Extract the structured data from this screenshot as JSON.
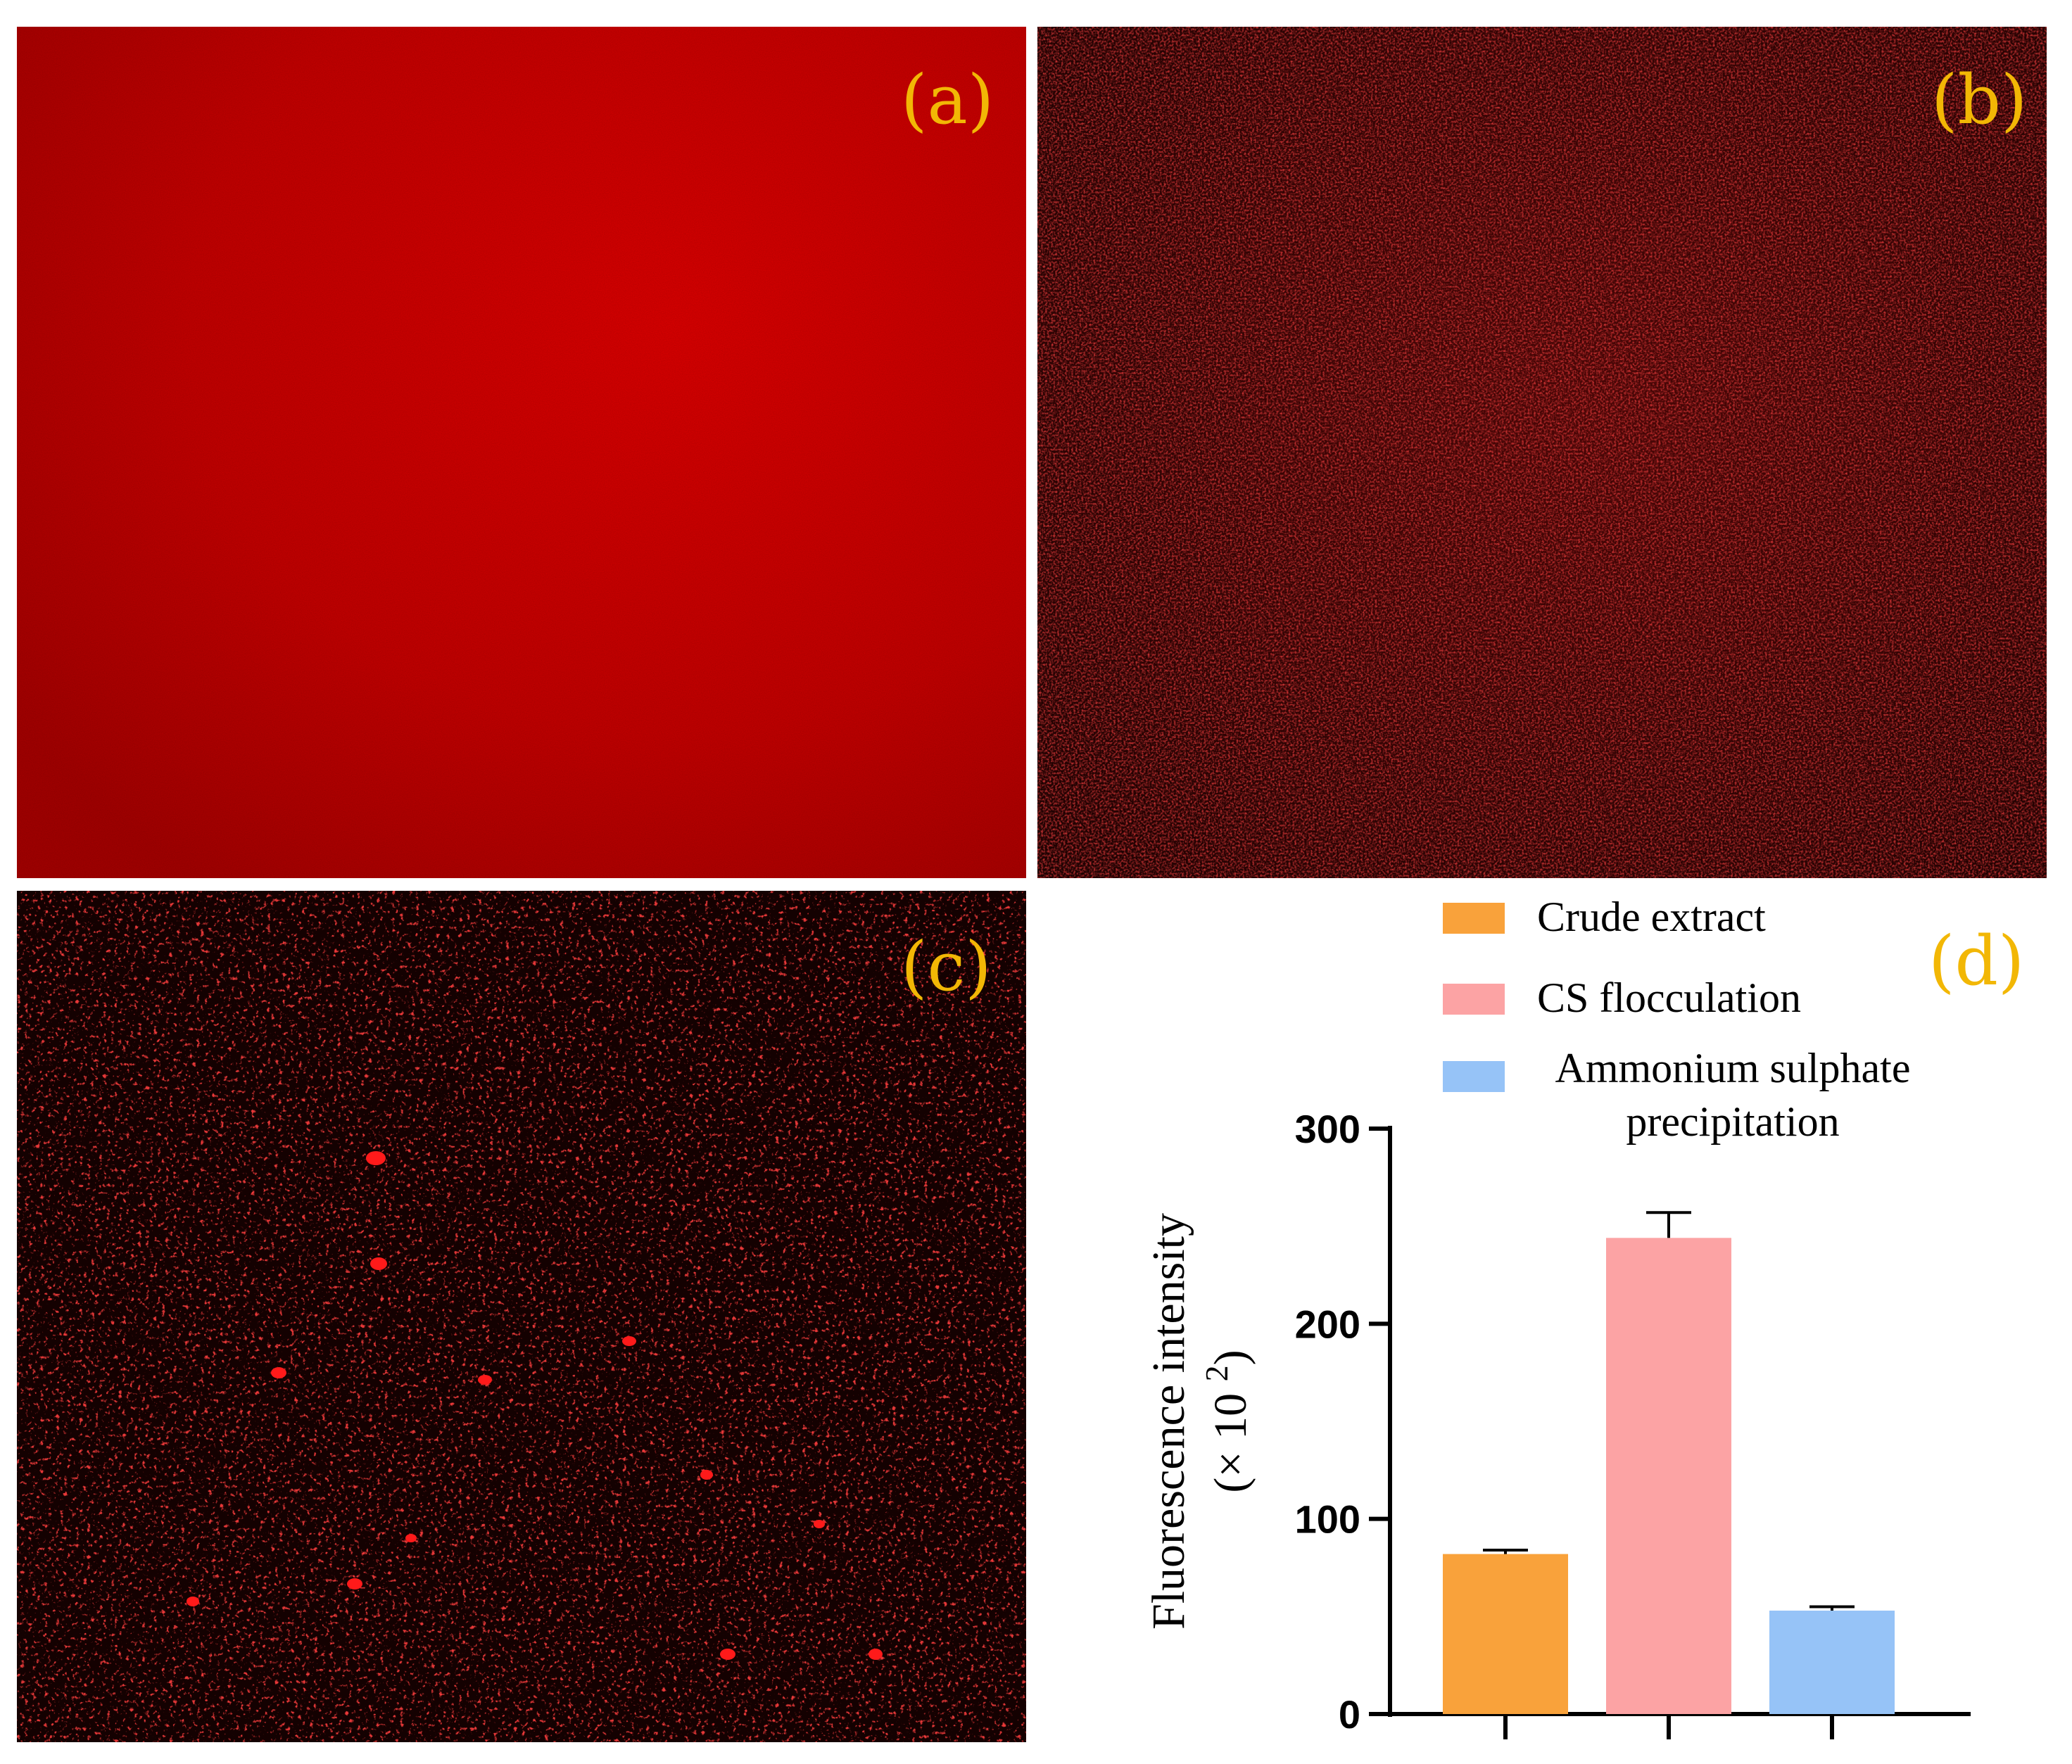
{
  "figure": {
    "panels": [
      {
        "label": "(a)",
        "kind": "fluorescence-micrograph",
        "appearance": "uniform bright red field"
      },
      {
        "label": "(b)",
        "kind": "fluorescence-micrograph",
        "appearance": "dark red speckled field"
      },
      {
        "label": "(c)",
        "kind": "fluorescence-micrograph",
        "appearance": "black field with scattered red spots"
      },
      {
        "label": "(d)",
        "kind": "bar-chart"
      }
    ],
    "colors": {
      "label": "#f2b705",
      "micro_a": "#cc0000",
      "micro_b": "#3a0404",
      "micro_c": "#100101",
      "crude": "#f9a23b",
      "cs": "#fca3a4",
      "ammonium": "#96c3f7"
    }
  },
  "chart_data": {
    "type": "bar",
    "title": "",
    "categories": [
      "Crude extract",
      "CS flocculation",
      "Ammonium sulphate precipitation"
    ],
    "legend": [
      "Crude extract",
      "CS flocculation",
      "Ammonium sulphate\nprecipitation"
    ],
    "legend_position": "top",
    "values": [
      82,
      244,
      53
    ],
    "errors": [
      2,
      13,
      2
    ],
    "colors": [
      "#f9a23b",
      "#fca3a4",
      "#96c3f7"
    ],
    "ylabel": "Fluorescence intensity",
    "ylabel_unit": "(× 10",
    "ylabel_exponent": "2",
    "ylabel_close": ")",
    "ylim": [
      0,
      300
    ],
    "yticks": [
      0,
      100,
      200,
      300
    ],
    "grid": false
  }
}
